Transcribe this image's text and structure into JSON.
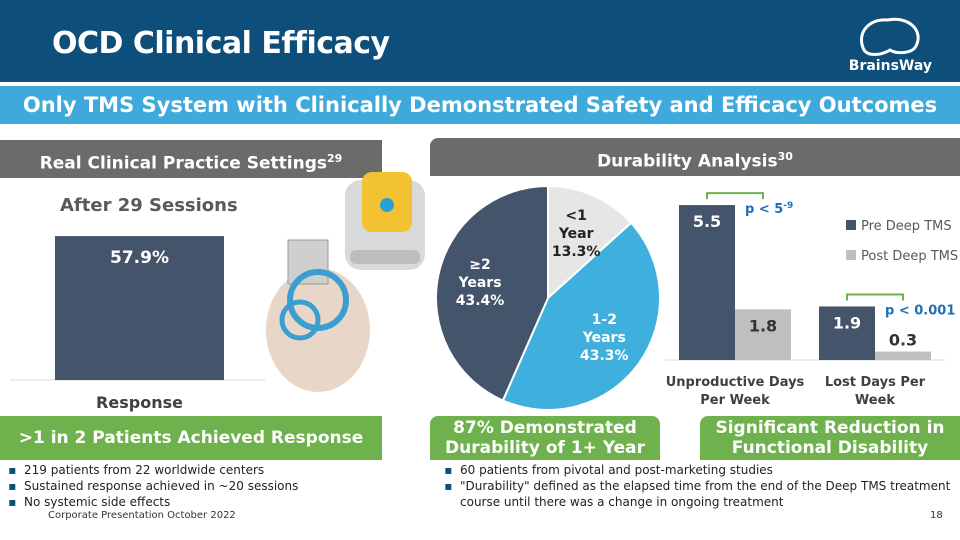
{
  "header": {
    "title": "OCD Clinical Efficacy",
    "logo": "BrainsWay"
  },
  "subtitle": "Only TMS System with Clinically Demonstrated Safety and Efficacy Outcomes",
  "sections": [
    {
      "title": "Real Clinical Practice Settings",
      "ref": "29"
    },
    {
      "title": "Durability Analysis",
      "ref": "30"
    }
  ],
  "chart_data": [
    {
      "type": "bar",
      "title": "After 29 Sessions",
      "categories": [
        "Response"
      ],
      "values": [
        57.9
      ],
      "value_labels": [
        "57.9%"
      ],
      "color": "#44546a",
      "ylim": [
        0,
        70
      ]
    },
    {
      "type": "pie",
      "categories": [
        "<1 Year",
        "1-2 Years",
        "≥2 Years"
      ],
      "values": [
        13.3,
        43.3,
        43.4
      ],
      "value_labels": [
        "13.3%",
        "43.3%",
        "43.4%"
      ],
      "colors": [
        "#e7e6e6",
        "#3fb0dd",
        "#44546a"
      ]
    },
    {
      "type": "grouped-bar",
      "categories": [
        "Unproductive Days Per Week",
        "Lost Days Per Week"
      ],
      "series": [
        {
          "name": "Pre Deep TMS",
          "color": "#44546a",
          "values": [
            5.5,
            1.9
          ]
        },
        {
          "name": "Post Deep TMS",
          "color": "#bfbfbf",
          "values": [
            1.8,
            0.3
          ]
        }
      ],
      "ylim": [
        0,
        6
      ],
      "annotations": [
        {
          "text": "p < 5",
          "sup": "-9"
        },
        {
          "text": "p < 0.001"
        }
      ]
    }
  ],
  "callouts": [
    ">1 in 2 Patients Achieved Response",
    "87% Demonstrated Durability of 1+ Year",
    "Significant Reduction in Functional Disability"
  ],
  "bullets_left": [
    "219 patients from 22 worldwide centers",
    "Sustained response achieved in ~20 sessions",
    "No systemic side effects"
  ],
  "bullets_right": [
    "60 patients from pivotal and post-marketing studies",
    "\"Durability\" defined as the elapsed time from the end of the Deep TMS treatment course until there was a change in ongoing treatment"
  ],
  "footer": {
    "text": "Corporate Presentation October 2022",
    "page": "18"
  }
}
